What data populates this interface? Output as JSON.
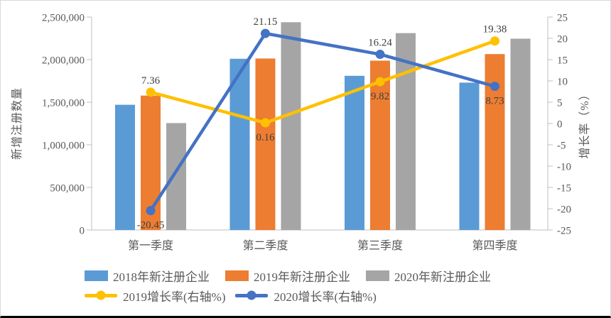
{
  "chart_data": {
    "type": "bar+line-combo",
    "categories": [
      "第一季度",
      "第二季度",
      "第三季度",
      "第四季度"
    ],
    "bar_series": [
      {
        "name": "2018年新注册企业",
        "color": "#5B9BD5",
        "axis": "left",
        "values": [
          1470000,
          2010000,
          1810000,
          1730000
        ]
      },
      {
        "name": "2019年新注册企业",
        "color": "#ED7D31",
        "axis": "left",
        "values": [
          1578000,
          2013000,
          1988000,
          2065000
        ]
      },
      {
        "name": "2020年新注册企业",
        "color": "#A5A5A5",
        "axis": "left",
        "values": [
          1255000,
          2439000,
          2311000,
          2246000
        ]
      }
    ],
    "line_series": [
      {
        "name": "2019增长率(右轴%)",
        "color": "#FFC000",
        "axis": "right",
        "values": [
          7.36,
          0.16,
          9.82,
          19.38
        ],
        "data_labels": [
          "7.36",
          "0.16",
          "9.82",
          "19.38"
        ]
      },
      {
        "name": "2020增长率(右轴%)",
        "color": "#4472C4",
        "axis": "right",
        "values": [
          -20.45,
          21.15,
          16.24,
          8.73
        ],
        "data_labels": [
          "-20.45",
          "21.15",
          "16.24",
          "8.73"
        ]
      }
    ],
    "left_axis": {
      "title": "新增注册数量",
      "min": 0,
      "max": 2500000,
      "step": 500000,
      "tick_labels": [
        "0",
        "500,000",
        "1,000,000",
        "1,500,000",
        "2,000,000",
        "2,500,000"
      ]
    },
    "right_axis": {
      "title": "增长率（%）",
      "min": -25,
      "max": 25,
      "step": 5,
      "tick_labels": [
        "-25",
        "-20",
        "-15",
        "-10",
        "-5",
        "0",
        "5",
        "10",
        "15",
        "20",
        "25"
      ]
    },
    "grid": false,
    "legend_position": "bottom",
    "axis_line_color": "#BFBFBF",
    "label_color": "#595959",
    "data_label_color": "#404040"
  }
}
